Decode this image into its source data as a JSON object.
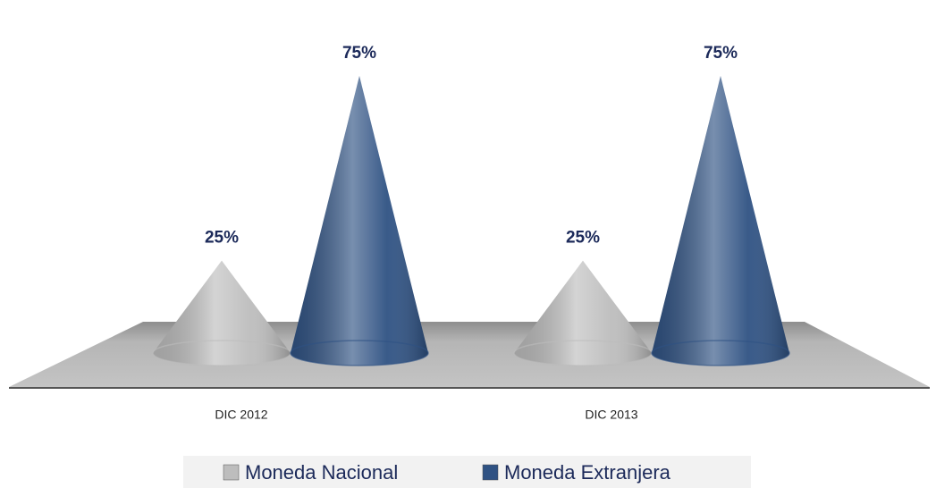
{
  "chart_data": {
    "type": "cone",
    "categories": [
      "DIC 2012",
      "DIC 2013"
    ],
    "series": [
      {
        "name": "Moneda Nacional",
        "color": "#bdbdbd",
        "values": [
          25,
          25
        ],
        "value_labels": [
          "25%",
          "25%"
        ]
      },
      {
        "name": "Moneda Extranjera",
        "color": "#2f5283",
        "values": [
          75,
          75
        ],
        "value_labels": [
          "75%",
          "75%"
        ]
      }
    ],
    "legend": "bottom"
  }
}
